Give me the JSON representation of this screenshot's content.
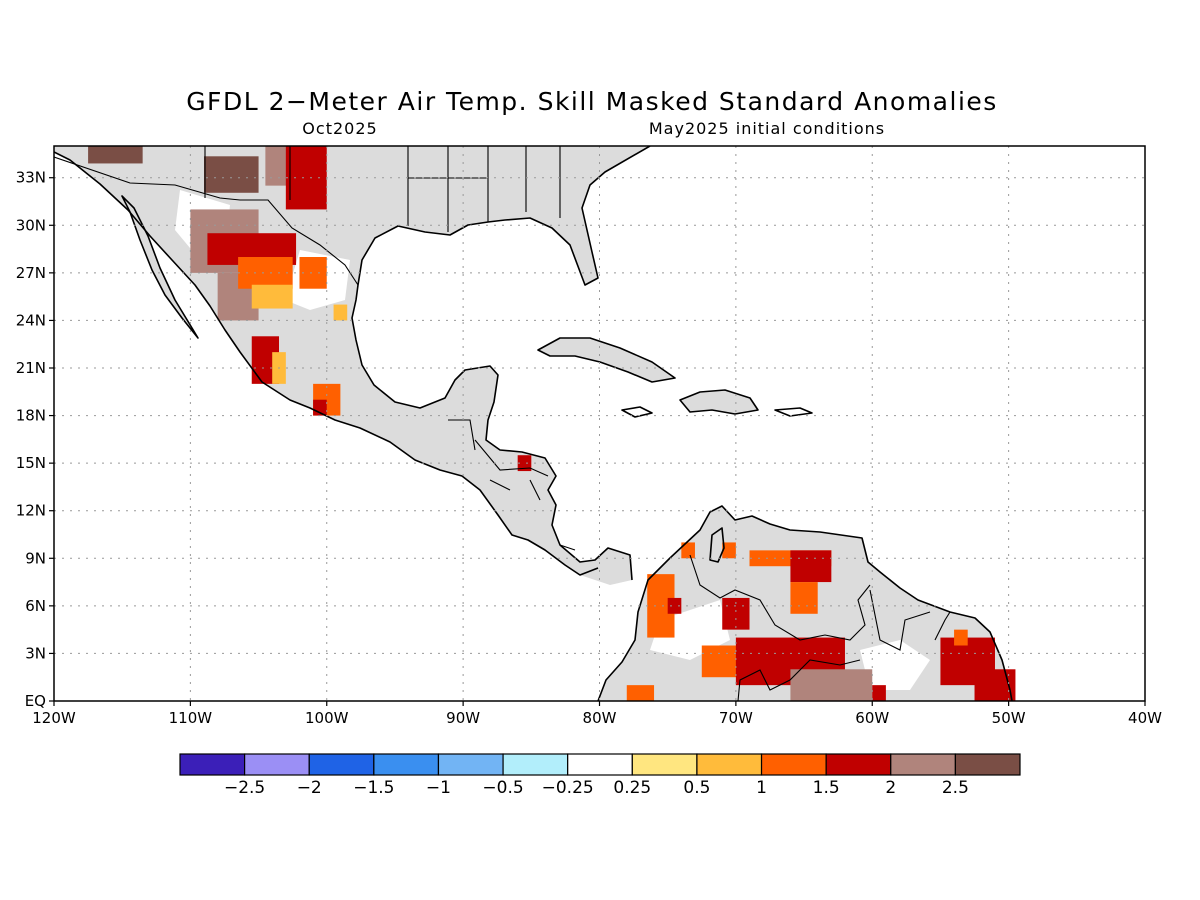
{
  "title": "GFDL 2−Meter Air Temp. Skill Masked Standard Anomalies",
  "subtitle_left": "Oct2025",
  "subtitle_right": "May2025 initial conditions",
  "map": {
    "lon_range": [
      -120,
      -40
    ],
    "lat_range": [
      0,
      35
    ],
    "x_ticks": [
      {
        "value": -120,
        "label": "120W"
      },
      {
        "value": -110,
        "label": "110W"
      },
      {
        "value": -100,
        "label": "100W"
      },
      {
        "value": -90,
        "label": "90W"
      },
      {
        "value": -80,
        "label": "80W"
      },
      {
        "value": -70,
        "label": "70W"
      },
      {
        "value": -60,
        "label": "60W"
      },
      {
        "value": -50,
        "label": "50W"
      },
      {
        "value": -40,
        "label": "40W"
      }
    ],
    "y_ticks": [
      {
        "value": 0,
        "label": "EQ"
      },
      {
        "value": 3,
        "label": "3N"
      },
      {
        "value": 6,
        "label": "6N"
      },
      {
        "value": 9,
        "label": "9N"
      },
      {
        "value": 12,
        "label": "12N"
      },
      {
        "value": 15,
        "label": "15N"
      },
      {
        "value": 18,
        "label": "18N"
      },
      {
        "value": 21,
        "label": "21N"
      },
      {
        "value": 24,
        "label": "24N"
      },
      {
        "value": 27,
        "label": "27N"
      },
      {
        "value": 30,
        "label": "30N"
      },
      {
        "value": 33,
        "label": "33N"
      }
    ],
    "gridlines": true,
    "land_masked_color": "#dcdcdc"
  },
  "colorbar": {
    "colors": [
      "#3b1fb8",
      "#9b8ff5",
      "#1f63e6",
      "#3a8ff0",
      "#72b4f4",
      "#b2eefb",
      "#ffffff",
      "#ffe680",
      "#ffbb3b",
      "#ff6000",
      "#c00000",
      "#b0847c",
      "#7a4e45"
    ],
    "labels": [
      "−2.5",
      "−2",
      "−1.5",
      "−1",
      "−0.5",
      "−0.25",
      "0.25",
      "0.5",
      "1",
      "1.5",
      "2",
      "2.5"
    ]
  },
  "anomaly_cells": [
    {
      "lon": -115.5,
      "lat": 34.5,
      "w": 4,
      "h": 1.2,
      "value": 2.8
    },
    {
      "lon": -107,
      "lat": 33.2,
      "w": 4,
      "h": 2.3,
      "value": 2.8
    },
    {
      "lon": -103.5,
      "lat": 34,
      "w": 2,
      "h": 3,
      "value": 2.2
    },
    {
      "lon": -107.5,
      "lat": 29,
      "w": 5,
      "h": 4,
      "value": 2.2
    },
    {
      "lon": -101.5,
      "lat": 33,
      "w": 3,
      "h": 4,
      "value": 1.8
    },
    {
      "lon": -105.5,
      "lat": 28.5,
      "w": 6.5,
      "h": 2,
      "value": 1.8
    },
    {
      "lon": -106.5,
      "lat": 25.5,
      "w": 3,
      "h": 3,
      "value": 2.2
    },
    {
      "lon": -104.5,
      "lat": 27,
      "w": 4,
      "h": 2,
      "value": 1.3
    },
    {
      "lon": -101,
      "lat": 27,
      "w": 2,
      "h": 2,
      "value": 1.3
    },
    {
      "lon": -104,
      "lat": 25.5,
      "w": 3,
      "h": 1.5,
      "value": 0.8
    },
    {
      "lon": -99,
      "lat": 24.5,
      "w": 1,
      "h": 1,
      "value": 0.8
    },
    {
      "lon": -104.5,
      "lat": 21.5,
      "w": 2,
      "h": 3,
      "value": 1.8
    },
    {
      "lon": -103.5,
      "lat": 21,
      "w": 1,
      "h": 2,
      "value": 0.6
    },
    {
      "lon": -100,
      "lat": 19,
      "w": 2,
      "h": 2,
      "value": 1.3
    },
    {
      "lon": -100.5,
      "lat": 18.5,
      "w": 1,
      "h": 1,
      "value": 1.8
    },
    {
      "lon": -85.5,
      "lat": 15,
      "w": 1,
      "h": 1,
      "value": 1.8
    },
    {
      "lon": -75.5,
      "lat": 6,
      "w": 2,
      "h": 4,
      "value": 1.3
    },
    {
      "lon": -74.5,
      "lat": 6,
      "w": 1,
      "h": 1,
      "value": 1.8
    },
    {
      "lon": -73.5,
      "lat": 9.5,
      "w": 1,
      "h": 1,
      "value": 1.3
    },
    {
      "lon": -70.5,
      "lat": 9.5,
      "w": 1,
      "h": 1,
      "value": 1.3
    },
    {
      "lon": -66,
      "lat": 9,
      "w": 6,
      "h": 1,
      "value": 1.3
    },
    {
      "lon": -64.5,
      "lat": 8.5,
      "w": 3,
      "h": 2,
      "value": 1.8
    },
    {
      "lon": -65,
      "lat": 6.5,
      "w": 2,
      "h": 2,
      "value": 1.3
    },
    {
      "lon": -70,
      "lat": 5.5,
      "w": 2,
      "h": 2,
      "value": 1.8
    },
    {
      "lon": -71,
      "lat": 2.5,
      "w": 3,
      "h": 2,
      "value": 1.3
    },
    {
      "lon": -66,
      "lat": 2.5,
      "w": 8,
      "h": 3,
      "value": 1.8
    },
    {
      "lon": -63,
      "lat": 1,
      "w": 6,
      "h": 2,
      "value": 2.2
    },
    {
      "lon": -77,
      "lat": 0.5,
      "w": 2,
      "h": 1,
      "value": 1.3
    },
    {
      "lon": -59.5,
      "lat": 0.5,
      "w": 1,
      "h": 1,
      "value": 1.8
    },
    {
      "lon": -53,
      "lat": 2.5,
      "w": 4,
      "h": 3,
      "value": 1.8
    },
    {
      "lon": -53.5,
      "lat": 4,
      "w": 1,
      "h": 1,
      "value": 1.3
    },
    {
      "lon": -51,
      "lat": 1,
      "w": 3,
      "h": 2,
      "value": 1.8
    }
  ]
}
